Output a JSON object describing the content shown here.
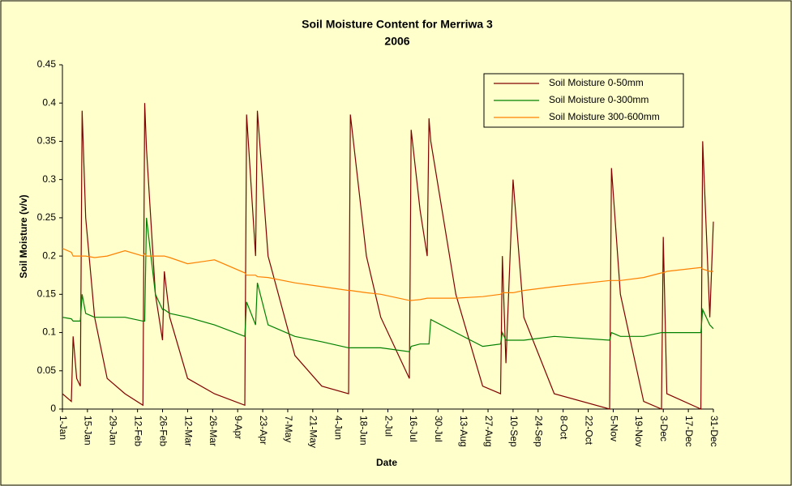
{
  "chart_data": {
    "type": "line",
    "title": "Soil Moisture Content for Merriwa 3",
    "subtitle": "2006",
    "x_label": "Date",
    "y_label": "Soil Moisture (v/v)",
    "x": [
      0,
      5,
      6,
      8,
      10,
      11,
      13,
      18,
      25,
      35,
      45,
      46,
      47,
      52,
      56,
      57,
      60,
      70,
      85,
      102,
      103,
      108,
      109,
      115,
      130,
      145,
      160,
      161,
      170,
      178,
      194,
      195,
      200,
      204,
      205,
      206,
      220,
      235,
      245,
      246,
      248,
      252,
      258,
      275,
      306,
      307,
      312,
      325,
      335,
      336,
      338,
      357,
      358,
      362,
      364
    ],
    "series": [
      {
        "name": "Soil Moisture 0-50mm",
        "color": "#800000",
        "values": [
          0.02,
          0.01,
          0.095,
          0.04,
          0.03,
          0.39,
          0.25,
          0.12,
          0.04,
          0.02,
          0.005,
          0.4,
          0.34,
          0.15,
          0.09,
          0.18,
          0.12,
          0.04,
          0.02,
          0.005,
          0.385,
          0.2,
          0.39,
          0.2,
          0.07,
          0.03,
          0.02,
          0.385,
          0.2,
          0.12,
          0.04,
          0.365,
          0.26,
          0.2,
          0.38,
          0.35,
          0.15,
          0.03,
          0.02,
          0.2,
          0.06,
          0.3,
          0.12,
          0.02,
          0,
          0.315,
          0.15,
          0.01,
          0,
          0.225,
          0.02,
          0,
          0.35,
          0.12,
          0.245
        ]
      },
      {
        "name": "Soil Moisture 0-300mm",
        "color": "#008000",
        "values": [
          0.12,
          0.118,
          0.115,
          0.115,
          0.115,
          0.15,
          0.125,
          0.12,
          0.12,
          0.12,
          0.115,
          0.115,
          0.25,
          0.15,
          0.13,
          0.13,
          0.125,
          0.12,
          0.11,
          0.095,
          0.14,
          0.11,
          0.165,
          0.11,
          0.095,
          0.088,
          0.08,
          0.08,
          0.08,
          0.08,
          0.075,
          0.082,
          0.085,
          0.085,
          0.085,
          0.117,
          0.1,
          0.082,
          0.085,
          0.1,
          0.09,
          0.09,
          0.09,
          0.095,
          0.09,
          0.1,
          0.095,
          0.095,
          0.1,
          0.1,
          0.1,
          0.1,
          0.13,
          0.11,
          0.105
        ]
      },
      {
        "name": "Soil Moisture 300-600mm",
        "color": "#ff8000",
        "values": [
          0.21,
          0.205,
          0.2,
          0.2,
          0.2,
          0.2,
          0.2,
          0.198,
          0.2,
          0.207,
          0.2,
          0.203,
          0.2,
          0.2,
          0.2,
          0.2,
          0.198,
          0.19,
          0.195,
          0.178,
          0.175,
          0.175,
          0.173,
          0.172,
          0.165,
          0.16,
          0.155,
          0.155,
          0.152,
          0.15,
          0.142,
          0.142,
          0.143,
          0.145,
          0.145,
          0.145,
          0.145,
          0.147,
          0.15,
          0.152,
          0.152,
          0.152,
          0.155,
          0.16,
          0.168,
          0.168,
          0.168,
          0.172,
          0.178,
          0.178,
          0.18,
          0.185,
          0.183,
          0.18,
          0.18
        ]
      }
    ],
    "xlim": [
      0,
      364
    ],
    "xticks": [
      {
        "value": 0,
        "label": "1-Jan"
      },
      {
        "value": 14,
        "label": "15-Jan"
      },
      {
        "value": 28,
        "label": "29-Jan"
      },
      {
        "value": 42,
        "label": "12-Feb"
      },
      {
        "value": 56,
        "label": "26-Feb"
      },
      {
        "value": 70,
        "label": "12-Mar"
      },
      {
        "value": 84,
        "label": "26-Mar"
      },
      {
        "value": 98,
        "label": "9-Apr"
      },
      {
        "value": 112,
        "label": "23-Apr"
      },
      {
        "value": 126,
        "label": "7-May"
      },
      {
        "value": 140,
        "label": "21-May"
      },
      {
        "value": 154,
        "label": "4-Jun"
      },
      {
        "value": 168,
        "label": "18-Jun"
      },
      {
        "value": 182,
        "label": "2-Jul"
      },
      {
        "value": 196,
        "label": "16-Jul"
      },
      {
        "value": 210,
        "label": "30-Jul"
      },
      {
        "value": 224,
        "label": "13-Aug"
      },
      {
        "value": 238,
        "label": "27-Aug"
      },
      {
        "value": 252,
        "label": "10-Sep"
      },
      {
        "value": 266,
        "label": "24-Sep"
      },
      {
        "value": 280,
        "label": "8-Oct"
      },
      {
        "value": 294,
        "label": "22-Oct"
      },
      {
        "value": 308,
        "label": "5-Nov"
      },
      {
        "value": 322,
        "label": "19-Nov"
      },
      {
        "value": 336,
        "label": "3-Dec"
      },
      {
        "value": 350,
        "label": "17-Dec"
      },
      {
        "value": 364,
        "label": "31-Dec"
      }
    ],
    "ylim": [
      0,
      0.45
    ],
    "yticks": [
      0,
      0.05,
      0.1,
      0.15,
      0.2,
      0.25,
      0.3,
      0.35,
      0.4,
      0.45
    ],
    "grid": false,
    "legend": "top-right"
  }
}
